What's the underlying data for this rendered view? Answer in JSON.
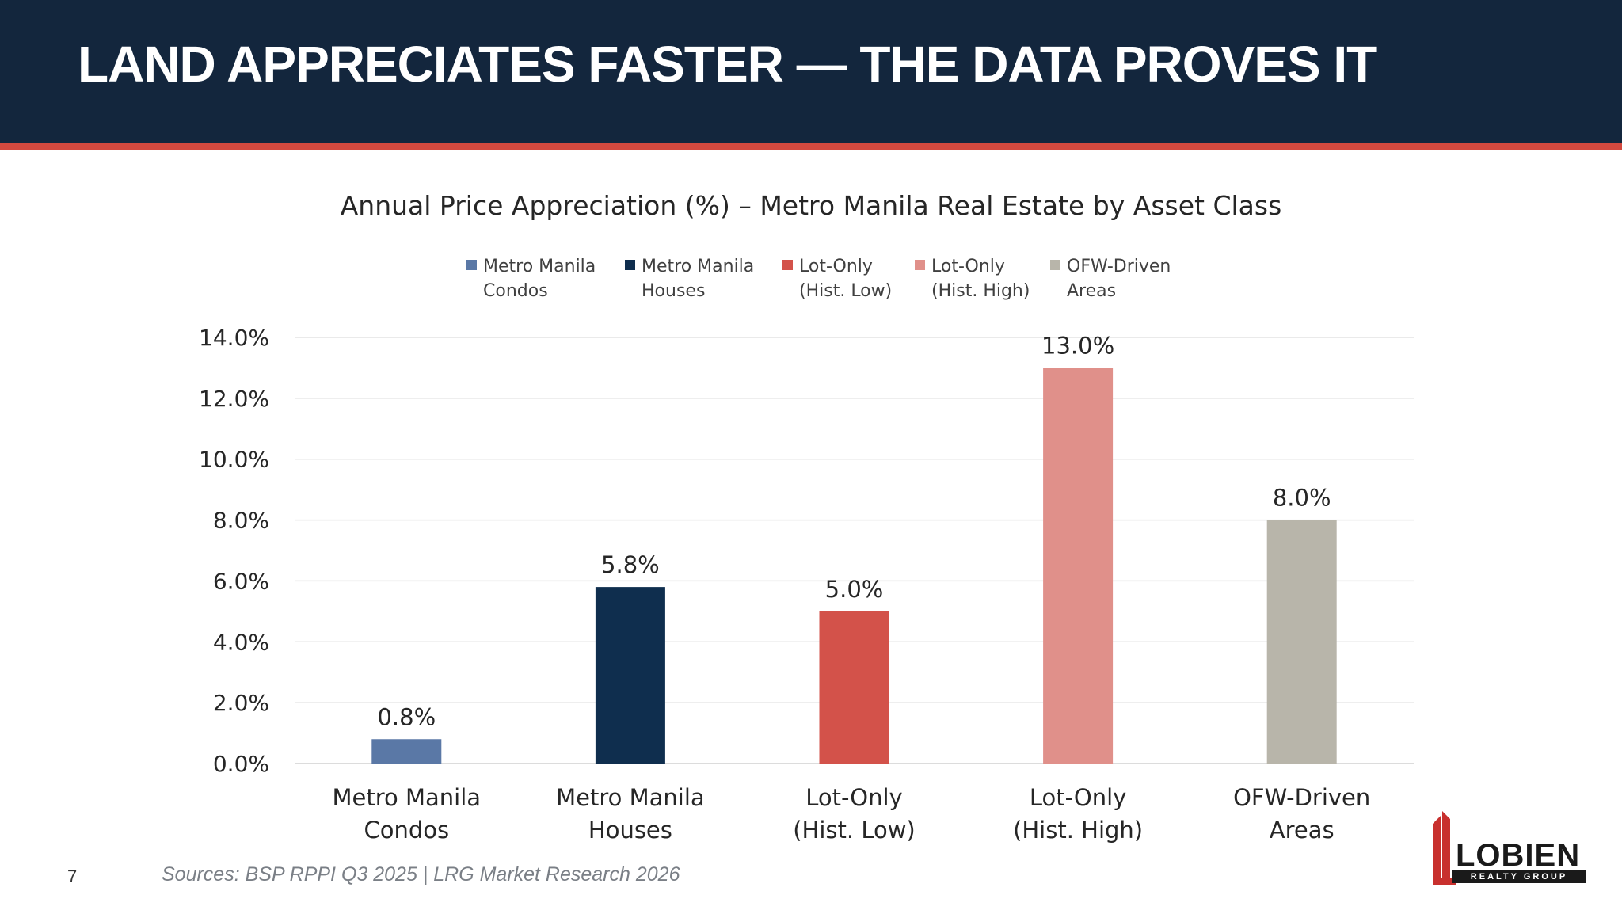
{
  "slide": {
    "title": "LAND APPRECIATES FASTER — THE DATA PROVES IT",
    "page_number": "7",
    "sources": "Sources: BSP RPPI Q3 2025 | LRG Market Research 2026",
    "colors": {
      "header_bg": "#13263d",
      "accent_stripe": "#d3493f"
    }
  },
  "logo": {
    "name": "LOBIEN",
    "subtitle": "REALTY GROUP",
    "icon": "building-icon"
  },
  "chart_data": {
    "type": "bar",
    "title": "Annual Price Appreciation (%) – Metro Manila Real Estate by Asset Class",
    "xlabel": "",
    "ylabel": "",
    "ylim": [
      0,
      14
    ],
    "yticks": [
      "0.0%",
      "2.0%",
      "4.0%",
      "6.0%",
      "8.0%",
      "10.0%",
      "12.0%",
      "14.0%"
    ],
    "grid": true,
    "legend_position": "top",
    "categories": [
      [
        "Metro Manila",
        "Condos"
      ],
      [
        "Metro Manila",
        "Houses"
      ],
      [
        "Lot-Only",
        "(Hist. Low)"
      ],
      [
        "Lot-Only",
        "(Hist. High)"
      ],
      [
        "OFW-Driven",
        "Areas"
      ]
    ],
    "values": [
      0.8,
      5.8,
      5.0,
      13.0,
      8.0
    ],
    "value_labels": [
      "0.8%",
      "5.8%",
      "5.0%",
      "13.0%",
      "8.0%"
    ],
    "colors": [
      "#5a78a6",
      "#0f2e4e",
      "#d3524a",
      "#e0908a",
      "#b8b5aa"
    ],
    "legend": [
      [
        "Metro Manila",
        "Condos"
      ],
      [
        "Metro Manila",
        "Houses"
      ],
      [
        "Lot-Only",
        "(Hist. Low)"
      ],
      [
        "Lot-Only",
        "(Hist. High)"
      ],
      [
        "OFW-Driven",
        "Areas"
      ]
    ]
  }
}
